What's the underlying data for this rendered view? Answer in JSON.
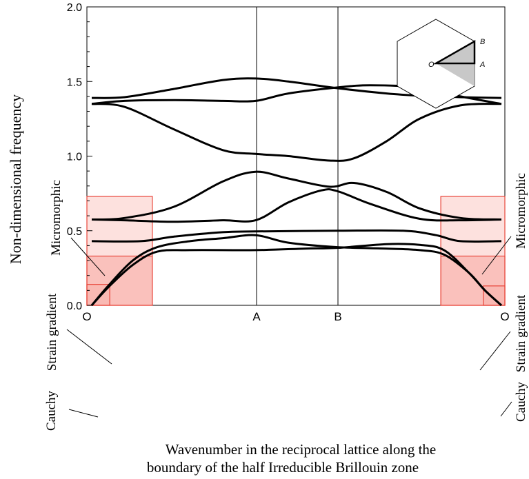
{
  "chart_data": {
    "type": "line",
    "ylabel": "Non-dimensional frequency",
    "xlabel_lines": [
      "Wavenumber in the reciprocal lattice along the",
      "boundary of the half  Irreducible Brillouin zone"
    ],
    "ylim": [
      0.0,
      2.0
    ],
    "yticks": [
      "0.0",
      "0.5",
      "1.0",
      "1.5",
      "2.0"
    ],
    "xticks": [
      {
        "label": "O",
        "x": 0
      },
      {
        "label": "A",
        "x": 1
      },
      {
        "label": "B",
        "x": 1.5
      },
      {
        "label": "O",
        "x": 2.5
      }
    ],
    "series": [
      {
        "points": [
          [
            0,
            0
          ],
          [
            0.1,
            0.12
          ],
          [
            0.25,
            0.27
          ],
          [
            0.4,
            0.36
          ],
          [
            0.6,
            0.37
          ],
          [
            1,
            0.37
          ],
          [
            1.3,
            0.38
          ],
          [
            1.5,
            0.385
          ],
          [
            1.8,
            0.41
          ],
          [
            2.0,
            0.405
          ],
          [
            2.15,
            0.37
          ],
          [
            2.3,
            0.22
          ],
          [
            2.4,
            0.1
          ],
          [
            2.5,
            0
          ]
        ]
      },
      {
        "points": [
          [
            0,
            0
          ],
          [
            0.1,
            0.13
          ],
          [
            0.25,
            0.3
          ],
          [
            0.4,
            0.39
          ],
          [
            0.6,
            0.43
          ],
          [
            0.8,
            0.45
          ],
          [
            1,
            0.47
          ],
          [
            1.2,
            0.42
          ],
          [
            1.5,
            0.39
          ],
          [
            1.8,
            0.38
          ],
          [
            2.0,
            0.37
          ],
          [
            2.15,
            0.34
          ],
          [
            2.3,
            0.22
          ],
          [
            2.4,
            0.1
          ],
          [
            2.5,
            0
          ]
        ]
      },
      {
        "points": [
          [
            0,
            0.43
          ],
          [
            0.3,
            0.43
          ],
          [
            0.5,
            0.46
          ],
          [
            0.8,
            0.49
          ],
          [
            1,
            0.495
          ],
          [
            1.5,
            0.5
          ],
          [
            1.9,
            0.5
          ],
          [
            2.1,
            0.47
          ],
          [
            2.25,
            0.43
          ],
          [
            2.5,
            0.43
          ]
        ]
      },
      {
        "points": [
          [
            0,
            0.575
          ],
          [
            0.2,
            0.57
          ],
          [
            0.5,
            0.56
          ],
          [
            0.8,
            0.57
          ],
          [
            1,
            0.57
          ],
          [
            1.2,
            0.69
          ],
          [
            1.4,
            0.77
          ],
          [
            1.5,
            0.765
          ],
          [
            1.7,
            0.68
          ],
          [
            2.0,
            0.58
          ],
          [
            2.25,
            0.57
          ],
          [
            2.5,
            0.575
          ]
        ]
      },
      {
        "points": [
          [
            0,
            0.575
          ],
          [
            0.2,
            0.585
          ],
          [
            0.5,
            0.66
          ],
          [
            0.8,
            0.83
          ],
          [
            1,
            0.895
          ],
          [
            1.2,
            0.85
          ],
          [
            1.45,
            0.795
          ],
          [
            1.6,
            0.82
          ],
          [
            1.8,
            0.76
          ],
          [
            2.0,
            0.65
          ],
          [
            2.25,
            0.585
          ],
          [
            2.5,
            0.575
          ]
        ]
      },
      {
        "points": [
          [
            0,
            1.35
          ],
          [
            0.2,
            1.33
          ],
          [
            0.5,
            1.18
          ],
          [
            0.8,
            1.04
          ],
          [
            1,
            1.015
          ],
          [
            1.2,
            1.0
          ],
          [
            1.45,
            0.97
          ],
          [
            1.6,
            0.985
          ],
          [
            1.8,
            1.1
          ],
          [
            2.0,
            1.25
          ],
          [
            2.25,
            1.34
          ],
          [
            2.5,
            1.35
          ]
        ]
      },
      {
        "points": [
          [
            0,
            1.35
          ],
          [
            0.2,
            1.37
          ],
          [
            0.5,
            1.375
          ],
          [
            0.8,
            1.37
          ],
          [
            1,
            1.37
          ],
          [
            1.2,
            1.42
          ],
          [
            1.5,
            1.46
          ],
          [
            1.7,
            1.475
          ],
          [
            2.0,
            1.46
          ],
          [
            2.25,
            1.4
          ],
          [
            2.5,
            1.35
          ]
        ]
      },
      {
        "points": [
          [
            0,
            1.39
          ],
          [
            0.2,
            1.395
          ],
          [
            0.5,
            1.45
          ],
          [
            0.8,
            1.51
          ],
          [
            1,
            1.52
          ],
          [
            1.2,
            1.5
          ],
          [
            1.5,
            1.455
          ],
          [
            1.8,
            1.42
          ],
          [
            2.0,
            1.405
          ],
          [
            2.25,
            1.395
          ],
          [
            2.5,
            1.39
          ]
        ]
      }
    ],
    "annotations": {
      "left": [
        "Micromorphic",
        "Strain gradient",
        "Cauchy"
      ],
      "right": [
        "Micromorphic",
        "Strain gradient",
        "Cauchy"
      ]
    },
    "highlight_regions": [
      {
        "side": "left",
        "x": [
          0,
          0.37
        ],
        "y": [
          0,
          0.73
        ],
        "level": "micromorphic"
      },
      {
        "side": "left",
        "x": [
          0,
          0.37
        ],
        "y": [
          0,
          0.33
        ],
        "level": "strain-gradient"
      },
      {
        "side": "left",
        "x": [
          0,
          0.11
        ],
        "y": [
          0,
          0.14
        ],
        "level": "cauchy"
      },
      {
        "side": "right",
        "x": [
          2.13,
          2.5
        ],
        "y": [
          0,
          0.73
        ],
        "level": "micromorphic"
      },
      {
        "side": "right",
        "x": [
          2.13,
          2.5
        ],
        "y": [
          0,
          0.33
        ],
        "level": "strain-gradient"
      },
      {
        "side": "right",
        "x": [
          2.39,
          2.5
        ],
        "y": [
          0,
          0.13
        ],
        "level": "cauchy"
      }
    ],
    "inset_labels": [
      "O",
      "A",
      "B"
    ],
    "colors": {
      "curve": "#000000",
      "region_stroke": "#e8453a",
      "region_fill": "#f8a8a0",
      "inset_fill": "#c8c8c8"
    }
  }
}
